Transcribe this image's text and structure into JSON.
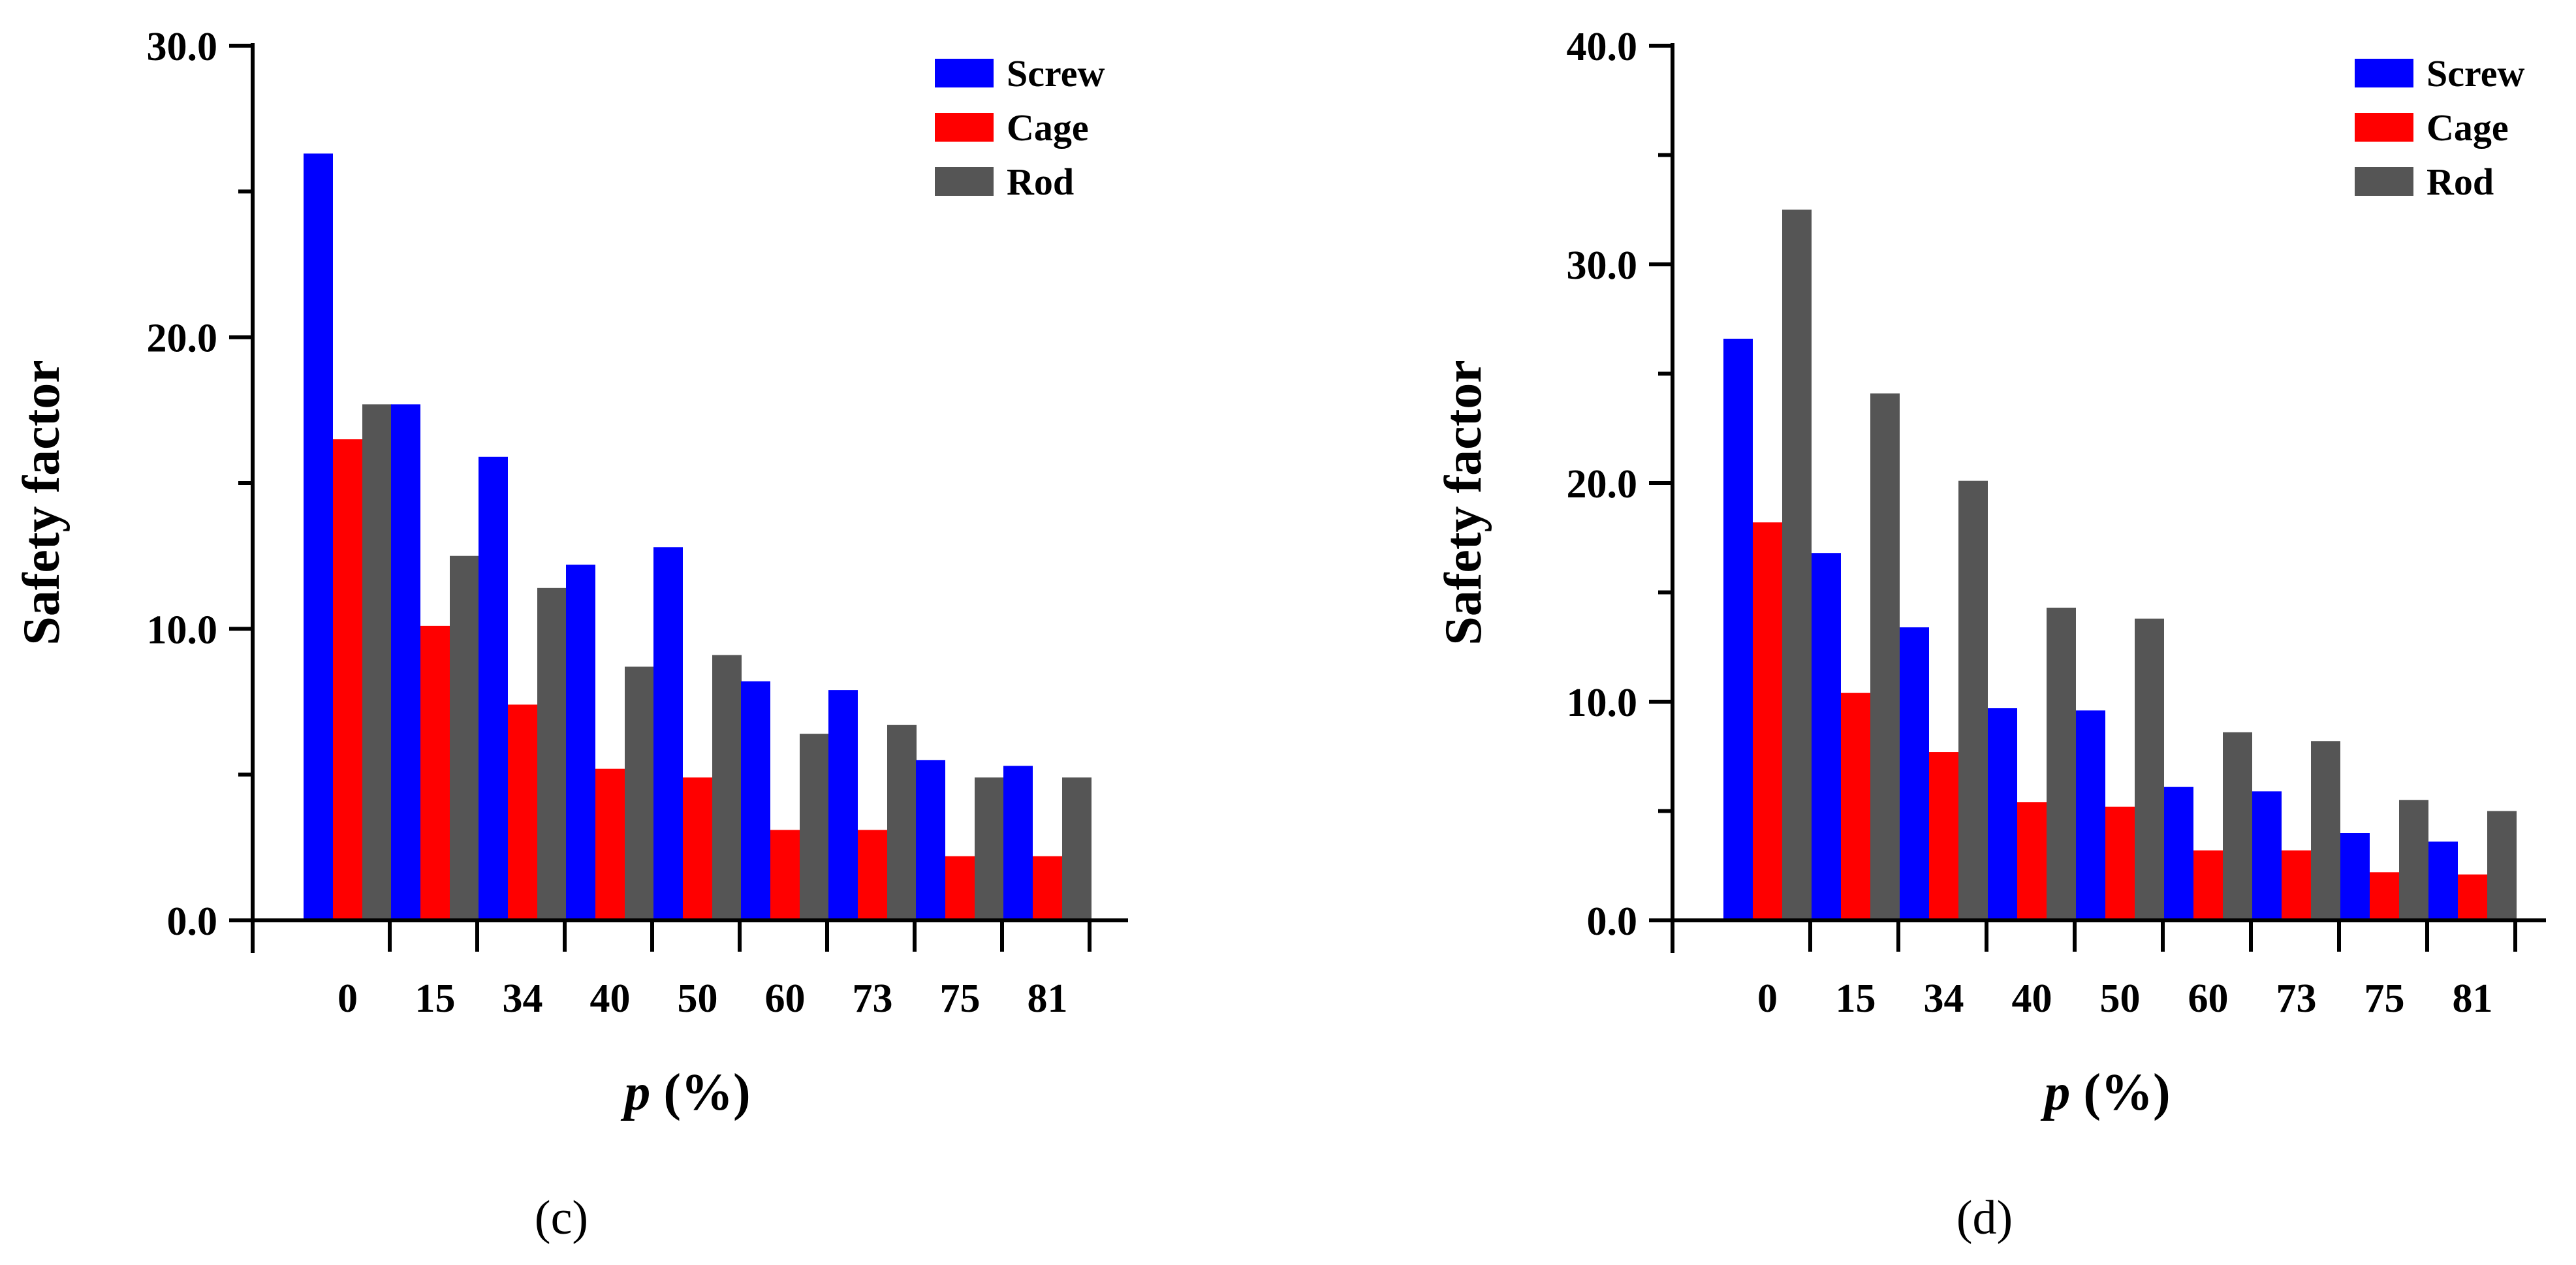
{
  "chart_data": [
    {
      "type": "bar",
      "panel_label": "(c)",
      "categories": [
        "0",
        "15",
        "34",
        "40",
        "50",
        "60",
        "73",
        "75",
        "81"
      ],
      "series": [
        {
          "name": "Screw",
          "color": "#0000ff",
          "values": [
            26.3,
            17.7,
            15.9,
            12.2,
            12.8,
            8.2,
            7.9,
            5.5,
            5.3
          ]
        },
        {
          "name": "Cage",
          "color": "#ff0000",
          "values": [
            16.5,
            10.1,
            7.4,
            5.2,
            4.9,
            3.1,
            3.1,
            2.2,
            2.2
          ]
        },
        {
          "name": "Rod",
          "color": "#555555",
          "values": [
            17.7,
            12.5,
            11.4,
            8.7,
            9.1,
            6.4,
            6.7,
            4.9,
            4.9
          ]
        }
      ],
      "ylabel": "Safety factor",
      "xlabel_var": "p",
      "xlabel_unit": " (%)",
      "ylim": [
        0,
        30
      ],
      "major_ticks": [
        0,
        10,
        20,
        30
      ],
      "tick_labels": [
        "0.0",
        "10.0",
        "20.0",
        "30.0"
      ],
      "minor_step": 5,
      "legend_position": "top-right",
      "grid": false
    },
    {
      "type": "bar",
      "panel_label": "(d)",
      "categories": [
        "0",
        "15",
        "34",
        "40",
        "50",
        "60",
        "73",
        "75",
        "81"
      ],
      "series": [
        {
          "name": "Screw",
          "color": "#0000ff",
          "values": [
            26.6,
            16.8,
            13.4,
            9.7,
            9.6,
            6.1,
            5.9,
            4.0,
            3.6
          ]
        },
        {
          "name": "Cage",
          "color": "#ff0000",
          "values": [
            18.2,
            10.4,
            7.7,
            5.4,
            5.2,
            3.2,
            3.2,
            2.2,
            2.1
          ]
        },
        {
          "name": "Rod",
          "color": "#555555",
          "values": [
            32.5,
            24.1,
            20.1,
            14.3,
            13.8,
            8.6,
            8.2,
            5.5,
            5.0
          ]
        }
      ],
      "ylabel": "Safety factor",
      "xlabel_var": "p",
      "xlabel_unit": " (%)",
      "ylim": [
        0,
        40
      ],
      "major_ticks": [
        0,
        10,
        20,
        30,
        40
      ],
      "tick_labels": [
        "0.0",
        "10.0",
        "20.0",
        "30.0",
        "40.0"
      ],
      "minor_step": 5,
      "legend_position": "top-right",
      "grid": false
    }
  ]
}
